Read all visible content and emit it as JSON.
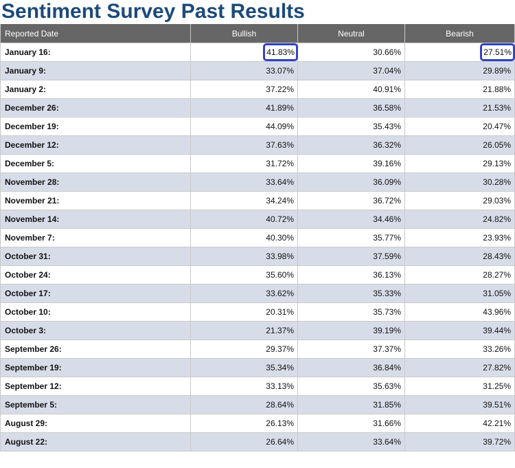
{
  "page": {
    "title": "Sentiment Survey Past Results"
  },
  "table": {
    "headers": {
      "date": "Reported Date",
      "bullish": "Bullish",
      "neutral": "Neutral",
      "bearish": "Bearish"
    },
    "rows": [
      {
        "date": "January 16:",
        "bullish": "41.83%",
        "neutral": "30.66%",
        "bearish": "27.51%"
      },
      {
        "date": "January 9:",
        "bullish": "33.07%",
        "neutral": "37.04%",
        "bearish": "29.89%"
      },
      {
        "date": "January 2:",
        "bullish": "37.22%",
        "neutral": "40.91%",
        "bearish": "21.88%"
      },
      {
        "date": "December 26:",
        "bullish": "41.89%",
        "neutral": "36.58%",
        "bearish": "21.53%"
      },
      {
        "date": "December 19:",
        "bullish": "44.09%",
        "neutral": "35.43%",
        "bearish": "20.47%"
      },
      {
        "date": "December 12:",
        "bullish": "37.63%",
        "neutral": "36.32%",
        "bearish": "26.05%"
      },
      {
        "date": "December 5:",
        "bullish": "31.72%",
        "neutral": "39.16%",
        "bearish": "29.13%"
      },
      {
        "date": "November 28:",
        "bullish": "33.64%",
        "neutral": "36.09%",
        "bearish": "30.28%"
      },
      {
        "date": "November 21:",
        "bullish": "34.24%",
        "neutral": "36.72%",
        "bearish": "29.03%"
      },
      {
        "date": "November 14:",
        "bullish": "40.72%",
        "neutral": "34.46%",
        "bearish": "24.82%"
      },
      {
        "date": "November 7:",
        "bullish": "40.30%",
        "neutral": "35.77%",
        "bearish": "23.93%"
      },
      {
        "date": "October 31:",
        "bullish": "33.98%",
        "neutral": "37.59%",
        "bearish": "28.43%"
      },
      {
        "date": "October 24:",
        "bullish": "35.60%",
        "neutral": "36.13%",
        "bearish": "28.27%"
      },
      {
        "date": "October 17:",
        "bullish": "33.62%",
        "neutral": "35.33%",
        "bearish": "31.05%"
      },
      {
        "date": "October 10:",
        "bullish": "20.31%",
        "neutral": "35.73%",
        "bearish": "43.96%"
      },
      {
        "date": "October 3:",
        "bullish": "21.37%",
        "neutral": "39.19%",
        "bearish": "39.44%"
      },
      {
        "date": "September 26:",
        "bullish": "29.37%",
        "neutral": "37.37%",
        "bearish": "33.26%"
      },
      {
        "date": "September 19:",
        "bullish": "35.34%",
        "neutral": "36.84%",
        "bearish": "27.82%"
      },
      {
        "date": "September 12:",
        "bullish": "33.13%",
        "neutral": "35.63%",
        "bearish": "31.25%"
      },
      {
        "date": "September 5:",
        "bullish": "28.64%",
        "neutral": "31.85%",
        "bearish": "39.51%"
      },
      {
        "date": "August 29:",
        "bullish": "26.13%",
        "neutral": "31.66%",
        "bearish": "42.21%"
      },
      {
        "date": "August 22:",
        "bullish": "26.64%",
        "neutral": "33.64%",
        "bearish": "39.72%"
      }
    ]
  },
  "colors": {
    "title": "#1c4a7a",
    "header_bg": "#666666",
    "alt_row_bg": "#d7dde8",
    "highlight_border": "#3341c4"
  }
}
